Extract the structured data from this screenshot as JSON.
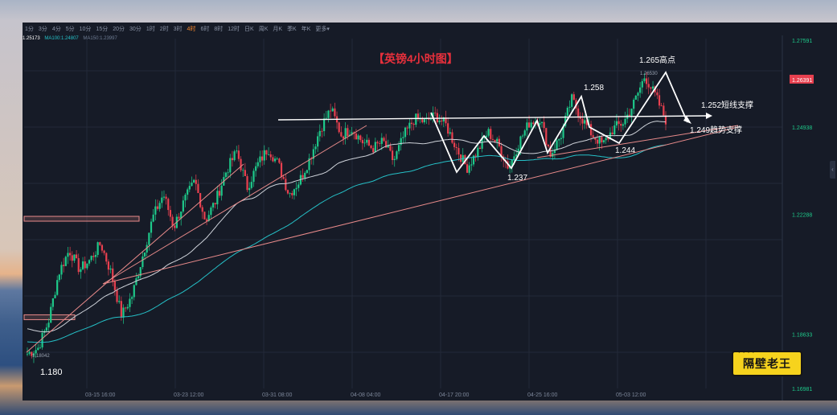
{
  "toolbar": {
    "timeframes": [
      "1分",
      "3分",
      "4分",
      "5分",
      "10分",
      "15分",
      "20分",
      "30分",
      "1时",
      "2时",
      "3时",
      "4时",
      "6时",
      "8时",
      "12时",
      "日K",
      "周K",
      "月K",
      "季K",
      "年K",
      "更多"
    ],
    "active": "4时",
    "more_label": "更多▾"
  },
  "legend": {
    "price": "1.25173",
    "ma100": "MA100:1.24807",
    "ma150": "MA150:1.23997"
  },
  "colors": {
    "background": "#161b27",
    "candle_up": "#1ec98a",
    "candle_down": "#e8404f",
    "ma_white": "#cfd3da",
    "ma_teal": "#25c0c7",
    "title_red": "#e8303c",
    "annotation_white": "#ffffff",
    "trendline_pink": "#e88a8a",
    "badge_yellow": "#f6d31d"
  },
  "chart_data": {
    "type": "candlestick",
    "title": "【英镑4小时图】",
    "x_axis_labels": [
      "03-15 16:00",
      "03-23 12:00",
      "03-31 08:00",
      "04-08 04:00",
      "04-17 20:00",
      "04-25 16:00",
      "05-03 12:00"
    ],
    "y_axis_labels": [
      "1.27591",
      "1.26391",
      "1.24938",
      "1.22288",
      "1.18633",
      "1.16981"
    ],
    "current_price_tag": "1.26391",
    "ylim": [
      1.1698,
      1.2759
    ],
    "grid": true,
    "price_path": [
      1.1804,
      1.182,
      1.19,
      1.205,
      1.212,
      1.206,
      1.209,
      1.214,
      1.205,
      1.192,
      1.198,
      1.21,
      1.222,
      1.229,
      1.219,
      1.227,
      1.233,
      1.221,
      1.227,
      1.236,
      1.242,
      1.231,
      1.238,
      1.243,
      1.238,
      1.229,
      1.233,
      1.24,
      1.249,
      1.255,
      1.247,
      1.249,
      1.245,
      1.243,
      1.245,
      1.239,
      1.247,
      1.252,
      1.251,
      1.253,
      1.25,
      1.243,
      1.237,
      1.242,
      1.248,
      1.244,
      1.237,
      1.245,
      1.251,
      1.252,
      1.241,
      1.247,
      1.258,
      1.252,
      1.247,
      1.244,
      1.249,
      1.251,
      1.257,
      1.265,
      1.259,
      1.2517
    ],
    "annotations": [
      {
        "label": "1.180",
        "price": 1.18
      },
      {
        "label": "1.237",
        "price": 1.237
      },
      {
        "label": "1.258",
        "price": 1.258
      },
      {
        "label": "1.244",
        "price": 1.244
      },
      {
        "label": "1.265高点",
        "price": 1.265
      },
      {
        "label": "1.252短线支撑",
        "price": 1.252
      },
      {
        "label": "1.249趋势支撑",
        "price": 1.249
      }
    ],
    "small_labels": [
      {
        "label": "1.18042",
        "price": 1.18042
      },
      {
        "label": "1.26530",
        "price": 1.2653
      }
    ],
    "support_zones": [
      1.2215,
      1.1915
    ]
  },
  "badge": {
    "text": "隔壁老王",
    "dots": "••••"
  }
}
